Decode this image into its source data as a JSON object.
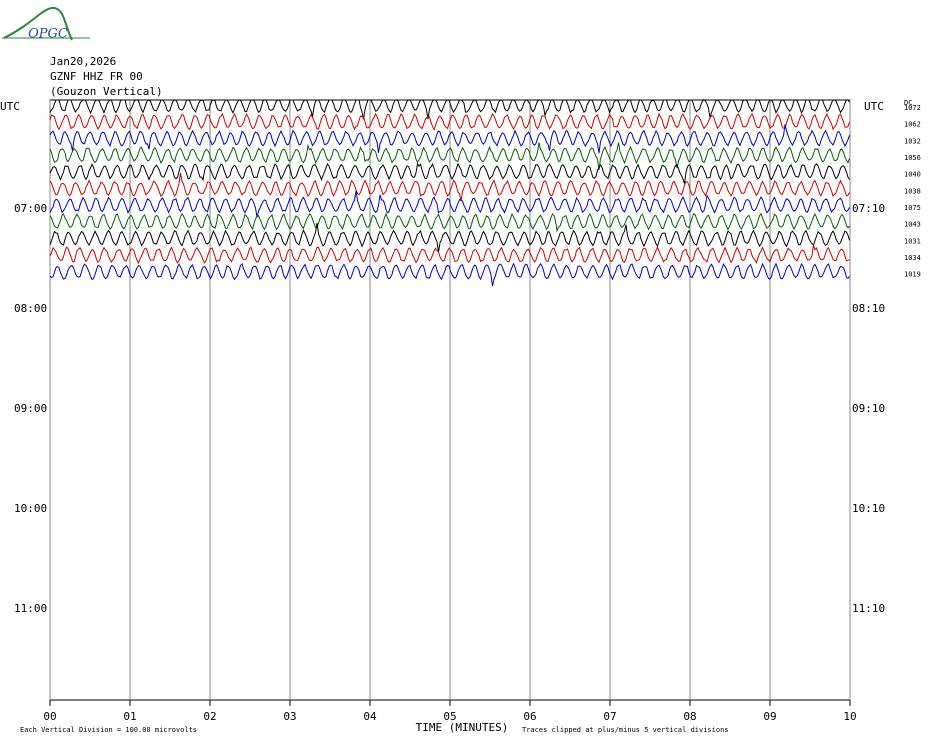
{
  "chart_data": {
    "type": "helicorder",
    "logo": "OPGC",
    "title_lines": [
      "Jan20,2026",
      "GZNF HHZ FR 00",
      "(Gouzon Vertical)"
    ],
    "left_header": "UTC",
    "right_header": "UTC",
    "dc_header": "DC",
    "left_labels": [
      "07:00",
      "08:00",
      "09:00",
      "10:00",
      "11:00"
    ],
    "right_labels": [
      "07:10",
      "08:10",
      "09:10",
      "10:10",
      "11:10"
    ],
    "xlabel": "TIME (MINUTES)",
    "xlim": [
      0,
      10
    ],
    "xticks": [
      {
        "value": 0,
        "label": "00"
      },
      {
        "value": 1,
        "label": "01"
      },
      {
        "value": 2,
        "label": "02"
      },
      {
        "value": 3,
        "label": "03"
      },
      {
        "value": 4,
        "label": "04"
      },
      {
        "value": 5,
        "label": "05"
      },
      {
        "value": 6,
        "label": "06"
      },
      {
        "value": 7,
        "label": "07"
      },
      {
        "value": 8,
        "label": "08"
      },
      {
        "value": 9,
        "label": "09"
      },
      {
        "value": 10,
        "label": "10"
      }
    ],
    "grid": true,
    "traces": [
      {
        "color": "#000000",
        "dc": 1072
      },
      {
        "color": "#d00000",
        "dc": 1062
      },
      {
        "color": "#0000c0",
        "dc": 1032
      },
      {
        "color": "#006000",
        "dc": 1056
      },
      {
        "color": "#000000",
        "dc": 1040
      },
      {
        "color": "#d00000",
        "dc": 1038
      },
      {
        "color": "#0000c0",
        "dc": 1075
      },
      {
        "color": "#006000",
        "dc": 1043
      },
      {
        "color": "#000000",
        "dc": 1031
      },
      {
        "color": "#d00000",
        "dc": 1034
      },
      {
        "color": "#0000c0",
        "dc": 1019
      }
    ],
    "footnote_left": "Each Vertical Division =  100.00 microvolts",
    "footnote_right": "Traces clipped at plus/minus 5 vertical divisions"
  }
}
